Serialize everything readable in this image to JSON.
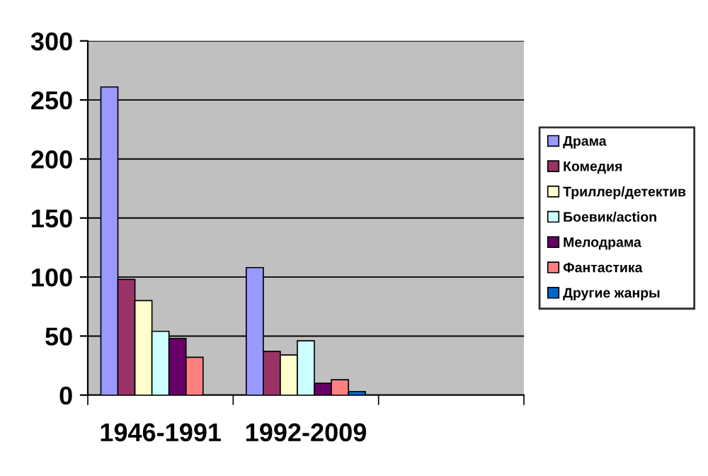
{
  "chart_data": {
    "type": "bar",
    "categories": [
      "1946-1991",
      "1992-2009",
      null
    ],
    "series": [
      {
        "name": "Драма",
        "color": "#9999ff",
        "values": [
          261,
          108,
          null
        ]
      },
      {
        "name": "Комедия",
        "color": "#993366",
        "values": [
          98,
          37,
          null
        ]
      },
      {
        "name": "Триллер/детектив",
        "color": "#ffffcc",
        "values": [
          80,
          34,
          null
        ]
      },
      {
        "name": "Боевик/action",
        "color": "#ccffff",
        "values": [
          54,
          46,
          null
        ]
      },
      {
        "name": "Мелодрама",
        "color": "#660066",
        "values": [
          48,
          10,
          null
        ]
      },
      {
        "name": "Фантастика",
        "color": "#ff8080",
        "values": [
          32,
          13,
          null
        ]
      },
      {
        "name": "Другие жанры",
        "color": "#0066cc",
        "values": [
          null,
          3,
          null
        ]
      }
    ],
    "ylim": [
      0,
      300
    ],
    "yticks": [
      0,
      50,
      100,
      150,
      200,
      250,
      300
    ],
    "grid": "y",
    "legend": "right"
  }
}
